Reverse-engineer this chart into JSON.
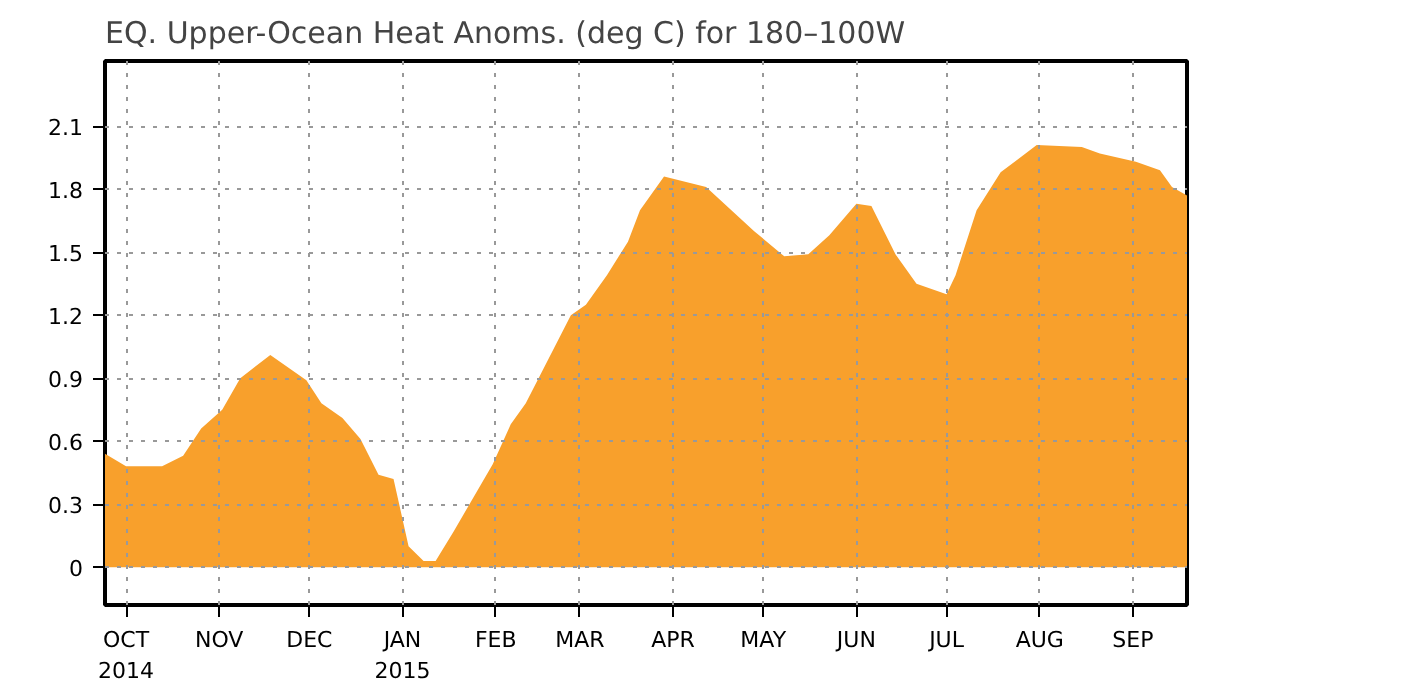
{
  "chart_data": {
    "type": "area",
    "title": "EQ. Upper-Ocean Heat Anoms. (deg C) for 180–100W",
    "x": [
      "2014-09-24",
      "2014-10-01",
      "2014-10-13",
      "2014-10-20",
      "2014-10-26",
      "2014-11-02",
      "2014-11-08",
      "2014-11-18",
      "2014-11-30",
      "2014-12-05",
      "2014-12-12",
      "2014-12-18",
      "2014-12-24",
      "2014-12-29",
      "2015-01-03",
      "2015-01-08",
      "2015-01-12",
      "2015-01-18",
      "2015-01-31",
      "2015-02-06",
      "2015-02-11",
      "2015-02-26",
      "2015-03-03",
      "2015-03-10",
      "2015-03-17",
      "2015-03-21",
      "2015-03-29",
      "2015-04-12",
      "2015-04-28",
      "2015-05-08",
      "2015-05-16",
      "2015-05-23",
      "2015-06-01",
      "2015-06-06",
      "2015-06-14",
      "2015-06-21",
      "2015-07-01",
      "2015-07-04",
      "2015-07-11",
      "2015-07-19",
      "2015-07-31",
      "2015-08-15",
      "2015-08-21",
      "2015-09-02",
      "2015-09-10",
      "2015-09-14",
      "2015-09-19"
    ],
    "series": [
      {
        "color": "#f8a02c",
        "values": [
          0.54,
          0.48,
          0.48,
          0.53,
          0.66,
          0.75,
          0.9,
          1.01,
          0.89,
          0.78,
          0.71,
          0.61,
          0.44,
          0.42,
          0.1,
          0.03,
          0.03,
          0.17,
          0.49,
          0.68,
          0.78,
          1.2,
          1.25,
          1.39,
          1.55,
          1.7,
          1.86,
          1.81,
          1.6,
          1.48,
          1.49,
          1.58,
          1.73,
          1.72,
          1.49,
          1.35,
          1.3,
          1.39,
          1.7,
          1.88,
          2.01,
          2.0,
          1.97,
          1.93,
          1.89,
          1.81,
          1.77
        ]
      }
    ],
    "xlim": [
      "2014-09-24",
      "2015-09-19"
    ],
    "xticks": [
      {
        "value": "2014-10-01",
        "label": "OCT\n2014"
      },
      {
        "value": "2014-11-01",
        "label": "NOV"
      },
      {
        "value": "2014-12-01",
        "label": "DEC"
      },
      {
        "value": "2015-01-01",
        "label": "JAN\n2015"
      },
      {
        "value": "2015-02-01",
        "label": "FEB"
      },
      {
        "value": "2015-03-01",
        "label": "MAR"
      },
      {
        "value": "2015-04-01",
        "label": "APR"
      },
      {
        "value": "2015-05-01",
        "label": "MAY"
      },
      {
        "value": "2015-06-01",
        "label": "JUN"
      },
      {
        "value": "2015-07-01",
        "label": "JUL"
      },
      {
        "value": "2015-08-01",
        "label": "AUG"
      },
      {
        "value": "2015-09-01",
        "label": "SEP"
      }
    ],
    "ylim": [
      -0.18,
      2.41
    ],
    "yticks": [
      0,
      0.3,
      0.6,
      0.9,
      1.2,
      1.5,
      1.8,
      2.1
    ],
    "grid": true
  }
}
